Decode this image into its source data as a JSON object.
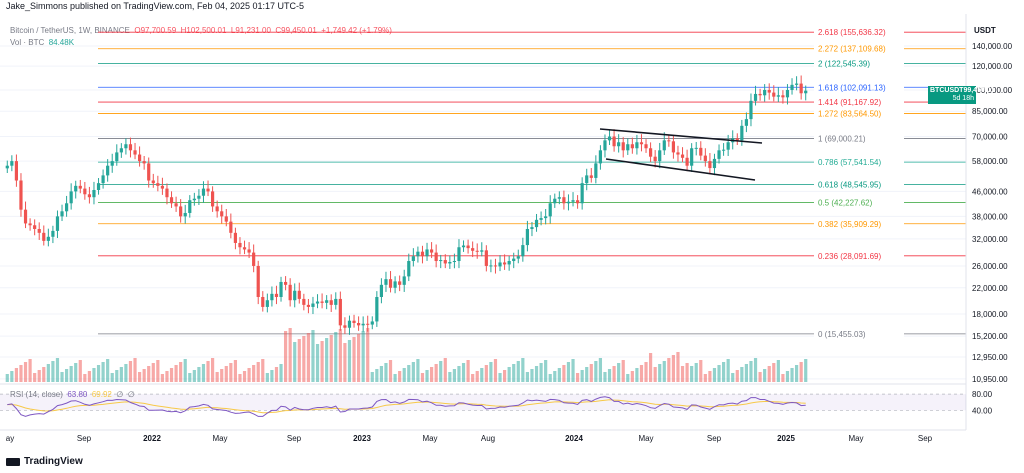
{
  "header": {
    "publisher": "Jake_Simmons published on TradingView.com, Feb 04, 2025 01:17 UTC-5"
  },
  "legend": {
    "symbol": "Bitcoin / TetherUS, 1W, BINANCE",
    "open": "O97,700.59",
    "high": "H102,500.01",
    "low": "L91,231.00",
    "close": "C99,450.01",
    "change": "+1,749.42 (+1.79%)"
  },
  "volume_legend": {
    "label": "Vol · BTC",
    "value": "84.48K"
  },
  "price_axis": {
    "currency": "USDT"
  },
  "current_price": {
    "ticker": "BTCUSDT",
    "price": "99,450.01",
    "countdown": "5d 18h"
  },
  "rsi_legend": {
    "label": "RSI (14, close)",
    "value": "63.80",
    "ma_value": "69.92",
    "x1": "∅",
    "x2": "∅"
  },
  "footer": {
    "brand": "TradingView"
  },
  "colors": {
    "up": "#26a69a",
    "down": "#ef5350",
    "rsi": "#7e57c2",
    "rsi_ma": "#f7c948",
    "grid": "#f0f3fa"
  },
  "chart_data": {
    "type": "candlestick",
    "title": "Bitcoin / TetherUS, 1W, BINANCE",
    "x_ticks": [
      "ay",
      "Sep",
      "2022",
      "May",
      "Sep",
      "2023",
      "May",
      "Aug",
      "2024",
      "May",
      "Sep",
      "2025",
      "May",
      "Sep"
    ],
    "y_ticks": [
      "140,000.00",
      "120,000.00",
      "100,000.00",
      "85,000.00",
      "70,000.00",
      "58,000.00",
      "46,000.00",
      "38,000.00",
      "32,000.00",
      "26,000.00",
      "22,000.00",
      "18,000.00",
      "15,200.00",
      "12,950.00",
      "10,950.00"
    ],
    "y_scale": "log",
    "fib_levels": [
      {
        "ratio": "2.618",
        "price": "155,636.32",
        "color": "#f23645"
      },
      {
        "ratio": "2.272",
        "price": "137,109.68",
        "color": "#ff9800"
      },
      {
        "ratio": "2",
        "price": "122,545.39",
        "color": "#089981"
      },
      {
        "ratio": "1.618",
        "price": "102,091.13",
        "color": "#2962ff"
      },
      {
        "ratio": "1.414",
        "price": "91,167.92",
        "color": "#f23645"
      },
      {
        "ratio": "1.272",
        "price": "83,564.50",
        "color": "#ff9800"
      },
      {
        "ratio": "1",
        "price": "69,000.21",
        "color": "#787b86"
      },
      {
        "ratio": "0.786",
        "price": "57,541.54",
        "color": "#22ab94"
      },
      {
        "ratio": "0.618",
        "price": "48,545.95",
        "color": "#089981"
      },
      {
        "ratio": "0.5",
        "price": "42,227.62",
        "color": "#4caf50"
      },
      {
        "ratio": "0.382",
        "price": "35,909.29",
        "color": "#ff9800"
      },
      {
        "ratio": "0.236",
        "price": "28,091.69",
        "color": "#f23645"
      },
      {
        "ratio": "0",
        "price": "15,455.03",
        "color": "#787b86"
      }
    ],
    "closes": [
      56000,
      58000,
      50000,
      40000,
      36000,
      35500,
      34500,
      33500,
      31500,
      32500,
      34000,
      38000,
      39500,
      42000,
      46000,
      48000,
      47000,
      45000,
      44000,
      46500,
      49000,
      52000,
      56000,
      58000,
      62000,
      64000,
      66000,
      63000,
      61000,
      58000,
      57000,
      50000,
      49000,
      48000,
      47000,
      44000,
      42000,
      41000,
      38000,
      39000,
      43000,
      43500,
      44500,
      47000,
      46000,
      41000,
      39500,
      38000,
      36500,
      33500,
      31000,
      30000,
      29500,
      28800,
      26000,
      20500,
      19000,
      20000,
      21000,
      20500,
      23000,
      22500,
      20000,
      21500,
      20200,
      19300,
      19000,
      19500,
      19800,
      19600,
      20000,
      19300,
      20200,
      16500,
      16200,
      17100,
      16800,
      16500,
      16700,
      16600,
      17000,
      20500,
      22500,
      23500,
      22000,
      23100,
      22500,
      24000,
      27000,
      28000,
      29000,
      28000,
      29500,
      28800,
      27000,
      27200,
      26500,
      26800,
      27000,
      30000,
      30400,
      29800,
      29200,
      29000,
      29300,
      26000,
      26100,
      25900,
      26700,
      26300,
      27000,
      27500,
      28000,
      30500,
      34500,
      35000,
      37000,
      37500,
      38000,
      42000,
      43500,
      44000,
      42000,
      42500,
      43000,
      42000,
      49000,
      52000,
      51000,
      57000,
      63000,
      68000,
      70000,
      65000,
      67000,
      63000,
      66000,
      64000,
      67000,
      66000,
      64000,
      60000,
      58000,
      63000,
      68000,
      67500,
      62000,
      61000,
      59500,
      56000,
      64000,
      64200,
      60500,
      58000,
      55000,
      59000,
      63000,
      63300,
      67000,
      69000,
      68000,
      76000,
      80000,
      92000,
      97000,
      96000,
      100000,
      98000,
      95000,
      96000,
      94500,
      100000,
      104000,
      105000,
      97500,
      99450
    ],
    "ohlc_last": {
      "open": 97700.59,
      "high": 102500.01,
      "low": 91231.0,
      "close": 99450.01
    },
    "volume_last": "84.48K",
    "rsi_last": 63.8,
    "rsi_ma_last": 69.92,
    "rsi_levels": [
      "80.00",
      "40.00"
    ],
    "annotations": [
      "descending channel / flag from ~70,000 to ~60,000 in 2024"
    ]
  }
}
